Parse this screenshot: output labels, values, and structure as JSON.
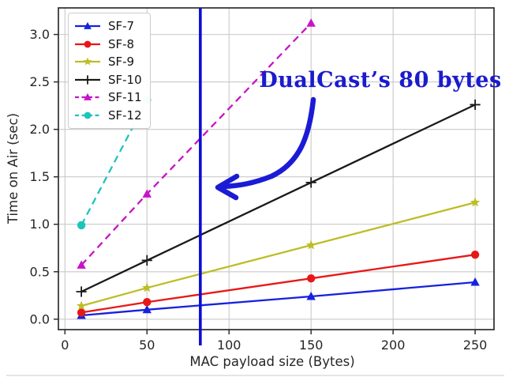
{
  "figure": {
    "background": "#ffffff",
    "annotation": {
      "text": "DualCast’s 80 bytes",
      "color": "#1b1bcd"
    },
    "arrow": {
      "color": "#1b1bd6"
    },
    "vline": {
      "x": 82.5,
      "color": "#0c0cd6"
    }
  },
  "chart_data": {
    "type": "line",
    "title": "",
    "xlabel": "MAC payload size (Bytes)",
    "ylabel": "Time on Air (sec)",
    "xlim": [
      -4,
      261.5
    ],
    "ylim": [
      -0.11,
      3.28
    ],
    "xticks": [
      "0",
      "50",
      "100",
      "150",
      "200",
      "250"
    ],
    "yticks": [
      "0.0",
      "0.5",
      "1.0",
      "1.5",
      "2.0",
      "2.5",
      "3.0"
    ],
    "grid": true,
    "legend_position": "upper-left",
    "series": [
      {
        "name": "SF-7",
        "color": "#1522dd",
        "dash": "solid",
        "marker": "triangle",
        "x": [
          10,
          50,
          150,
          250
        ],
        "y": [
          0.04,
          0.1,
          0.24,
          0.39
        ]
      },
      {
        "name": "SF-8",
        "color": "#e81717",
        "dash": "solid",
        "marker": "circle",
        "x": [
          10,
          50,
          150,
          250
        ],
        "y": [
          0.07,
          0.18,
          0.43,
          0.68
        ]
      },
      {
        "name": "SF-9",
        "color": "#bdbd27",
        "dash": "solid",
        "marker": "star",
        "x": [
          10,
          50,
          150,
          250
        ],
        "y": [
          0.14,
          0.33,
          0.78,
          1.23
        ]
      },
      {
        "name": "SF-10",
        "color": "#1a1a1a",
        "dash": "solid",
        "marker": "plus",
        "x": [
          10,
          50,
          150,
          250
        ],
        "y": [
          0.29,
          0.62,
          1.44,
          2.26
        ]
      },
      {
        "name": "SF-11",
        "color": "#c615c6",
        "dash": "dashed",
        "marker": "triangle",
        "x": [
          10,
          50,
          150
        ],
        "y": [
          0.57,
          1.32,
          3.12
        ]
      },
      {
        "name": "SF-12",
        "color": "#1dc4bd",
        "dash": "dashed",
        "marker": "circle",
        "x": [
          10,
          50
        ],
        "y": [
          0.99,
          2.31
        ]
      }
    ]
  }
}
